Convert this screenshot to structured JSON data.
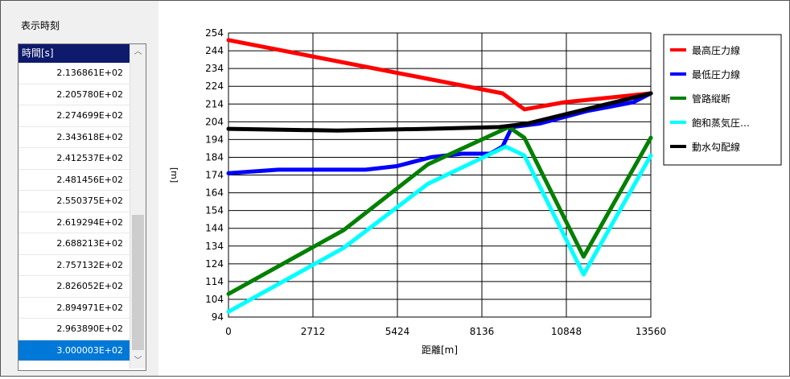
{
  "panel": {
    "title": "表示時刻",
    "list_header": "時間[s]",
    "items": [
      "2.136861E+02",
      "2.205780E+02",
      "2.274699E+02",
      "2.343618E+02",
      "2.412537E+02",
      "2.481456E+02",
      "2.550375E+02",
      "2.619294E+02",
      "2.688213E+02",
      "2.757132E+02",
      "2.826052E+02",
      "2.894971E+02",
      "2.963890E+02",
      "3.000003E+02"
    ],
    "selected_item": "3.000003E+02"
  },
  "chart_data": {
    "type": "line",
    "xlabel": "距離[m]",
    "ylabel": "[m]",
    "xlim": [
      0,
      13560
    ],
    "ylim": [
      94,
      254
    ],
    "x_ticks": [
      0,
      2712,
      5424,
      8136,
      10848,
      13560
    ],
    "y_ticks": [
      94,
      104,
      114,
      124,
      134,
      144,
      154,
      164,
      174,
      184,
      194,
      204,
      214,
      224,
      234,
      244,
      254
    ],
    "grid": true,
    "legend_position": "right",
    "series": [
      {
        "name": "最高圧力線",
        "color": "#ff0000",
        "points": [
          [
            0,
            250
          ],
          [
            8800,
            220
          ],
          [
            9500,
            211
          ],
          [
            10800,
            215
          ],
          [
            13560,
            220
          ]
        ]
      },
      {
        "name": "最低圧力線",
        "color": "#0000ff",
        "points": [
          [
            0,
            175
          ],
          [
            1600,
            177
          ],
          [
            3200,
            177
          ],
          [
            4400,
            177
          ],
          [
            5400,
            179
          ],
          [
            6500,
            184
          ],
          [
            7500,
            186
          ],
          [
            8400,
            186
          ],
          [
            8800,
            190
          ],
          [
            9100,
            201
          ],
          [
            10000,
            203
          ],
          [
            11500,
            210
          ],
          [
            13000,
            215
          ],
          [
            13560,
            220
          ]
        ]
      },
      {
        "name": "管路縦断",
        "color": "#008000",
        "points": [
          [
            0,
            107
          ],
          [
            3700,
            143
          ],
          [
            6400,
            180
          ],
          [
            9000,
            201
          ],
          [
            9500,
            195
          ],
          [
            11400,
            128
          ],
          [
            13560,
            195
          ]
        ]
      },
      {
        "name": "飽和蒸気圧…",
        "color": "#00ffff",
        "points": [
          [
            0,
            97
          ],
          [
            3700,
            133
          ],
          [
            6400,
            169
          ],
          [
            8900,
            190
          ],
          [
            9500,
            185
          ],
          [
            11400,
            118
          ],
          [
            13560,
            185
          ]
        ]
      },
      {
        "name": "動水勾配線",
        "color": "#000000",
        "points": [
          [
            0,
            200
          ],
          [
            3500,
            199
          ],
          [
            6400,
            200
          ],
          [
            8700,
            201
          ],
          [
            9600,
            203
          ],
          [
            11000,
            209
          ],
          [
            13560,
            220
          ]
        ]
      }
    ]
  }
}
